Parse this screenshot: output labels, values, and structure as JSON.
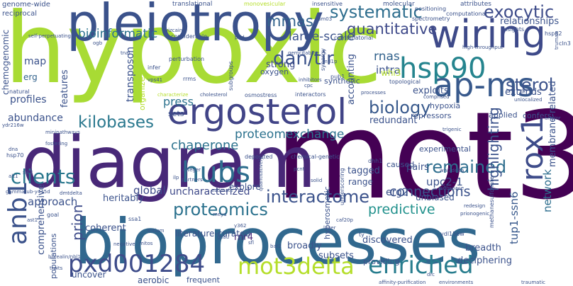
{
  "colors": {
    "background": "#ffffff",
    "palette": [
      "#440154",
      "#472d7b",
      "#3b528b",
      "#2c728e",
      "#21918c",
      "#28ae80",
      "#5ec962",
      "#addc30",
      "#d2e21b",
      "#fde725"
    ]
  },
  "words": {
    "hypoxic": "hypoxic",
    "mot3": "mot3",
    "diagram": "diagram",
    "bioprocesses": "bioprocesses",
    "pleiotropy": "pleiotropy",
    "wiring": "wiring",
    "ergosterol": "ergosterol",
    "apms": "ap-ms",
    "hsp90": "hsp90",
    "rox1": "rox1",
    "systematic": "systematic",
    "exocytic": "exocytic",
    "mrnas": "mrnas",
    "dantir": "dan/tir",
    "largescale": "large-scale",
    "quantitative": "quantitative",
    "bioinformatic": "bioinformatic",
    "biology": "biology",
    "sterol": "sterol",
    "rnas": "rnas",
    "kilobases": "kilobases",
    "proteomexchange": "proteomexchange",
    "chaperone": "chaperone",
    "clients": "clients",
    "hubs": "hubs",
    "anb1": "anb1",
    "remained": "remained",
    "highlighting": "highlighting",
    "network": "network",
    "pxd": "pxd001284",
    "mot3delta": "mot3delta",
    "enriched": "enriched",
    "proteomics": "proteomics",
    "interactome": "interactome",
    "connections": "connections",
    "predictive": "predictive",
    "uncharacterized": "uncharacterized",
    "prion": "prion",
    "approach": "approach",
    "global": "global",
    "tup1": "tup1-ssn6",
    "breadth": "breadth",
    "rnr4": "rnr4",
    "erg2": "erg2",
    "upc2": "upc2-1",
    "abundance": "abundance",
    "profiles": "profiles",
    "features": "features",
    "transposon": "transposon",
    "press": "press",
    "map": "map",
    "erg": "erg",
    "strong": "strong",
    "accounting": "accounting",
    "exploits": "exploits",
    "redundant": "redundant",
    "pairs": "pairs",
    "intra": "intra",
    "whi3": "whi3",
    "extends": "extends",
    "relationships": "relationships",
    "membrane": "membrane-related",
    "coherent": "coherent",
    "heritably": "heritably",
    "comprehensive": "comprehensive",
    "populations": "populations",
    "uncover": "uncover",
    "aerobic": "aerobic",
    "frequent": "frequent",
    "deciphering": "deciphering",
    "providing": "providing",
    "broadly": "broadly",
    "subsets": "subsets",
    "literature": "literature-curated",
    "discovered": "discovered",
    "explore": "explore",
    "tagged": "tagged",
    "range": "range",
    "unbiased": "unbiased",
    "caused": "caused",
    "experimental": "experimental",
    "applied": "applied",
    "confers": "confers",
    "organize": "organize",
    "sets": "sets",
    "synthetic": "synthetic",
    "oxygen": "oxygen",
    "repressors": "repressors",
    "hypoxia": "hypoxia",
    "hyperosmotic": "hyperosmotic",
    "chemogenomic": "chemogenomic",
    "genomewide": "genome-wide",
    "reciprocal": "reciprocal",
    "translational": "translational",
    "monovesicular": "monovesicular",
    "insensitive": "insensitive",
    "molecular": "molecular",
    "attributes": "attributes",
    "positioning": "positioning",
    "computational": "computational",
    "hsp82": "hsp82",
    "cln3": "cln3",
    "spectrometry": "spectrometry",
    "insights": "insights",
    "combinatorial": "combinatorial",
    "considerable": "considerable",
    "selfperpetuating": "self-perpetuating",
    "prld": "prld",
    "subgroups": "subgroups",
    "perturbation": "perturbation",
    "infer": "infer",
    "rrms": "rrms",
    "topological": "topological",
    "synergy": "synergy",
    "pub1": "pub1",
    "gemcitabine": "gemcitabine",
    "highthroughput": "high-throughput",
    "natural": "natural",
    "characterize": "characterize",
    "cholesterol": "cholesterol",
    "osmostress": "osmostress",
    "interactors": "interactors",
    "comprised": "comprised",
    "unlocalized": "unlocalized",
    "processes": "processes",
    "inhibitors": "inhibitors",
    "deposited": "deposited",
    "chemicalgenetic": "chemical-genetic",
    "dhh1": "dhh1",
    "trigenic": "trigenic",
    "whi3delta": "whi3delta",
    "methanesulfonate": "methanesulfonate",
    "subspace": "subspace",
    "prionogenic": "prionogenic",
    "hsp70": "hsp70",
    "minipathways": "minipathways",
    "fostering": "fostering",
    "integer": "integer",
    "partners": "partners",
    "estimate": "estimate",
    "salt": "salt",
    "quantitatively": "quantitatively",
    "underscoring": "underscoring",
    "ssa1": "ssa1",
    "goal": "goal",
    "caf20p": "caf20p",
    "layer": "layer",
    "negative": "negative",
    "tritium": "tritium",
    "mitos": "mitos",
    "ydl156w": "ydl156w",
    "drc": "drc",
    "affinity": "affinity-purification",
    "environments": "environments",
    "traumatic": "traumatic",
    "bat2": "bat2",
    "sfl": "sfl",
    "gcau": "gcau",
    "y362": "y362",
    "ty": "ty",
    "gammatub": "gammatub-y445d",
    "borealin": "borealin/nbl1",
    "traits": "traits",
    "alt1": "alt1",
    "ast1": "ast1",
    "dmtdelta": "dmtdelta",
    "ydr216w": "ydr216w",
    "vps41": "vps41",
    "dna": "dna",
    "ilp": "ilp",
    "cpc": "cpc",
    "mtl1p": "mtl1p",
    "dm03": "dm03",
    "vizcaino": "vizcaino",
    "ogb": "ogb",
    "andor": "and/or",
    "truman": "truman",
    "redesign": "redesign",
    "solid": "solid",
    "pcnt": "pcnt",
    "tnat": "tnat",
    "meya": "meya"
  }
}
